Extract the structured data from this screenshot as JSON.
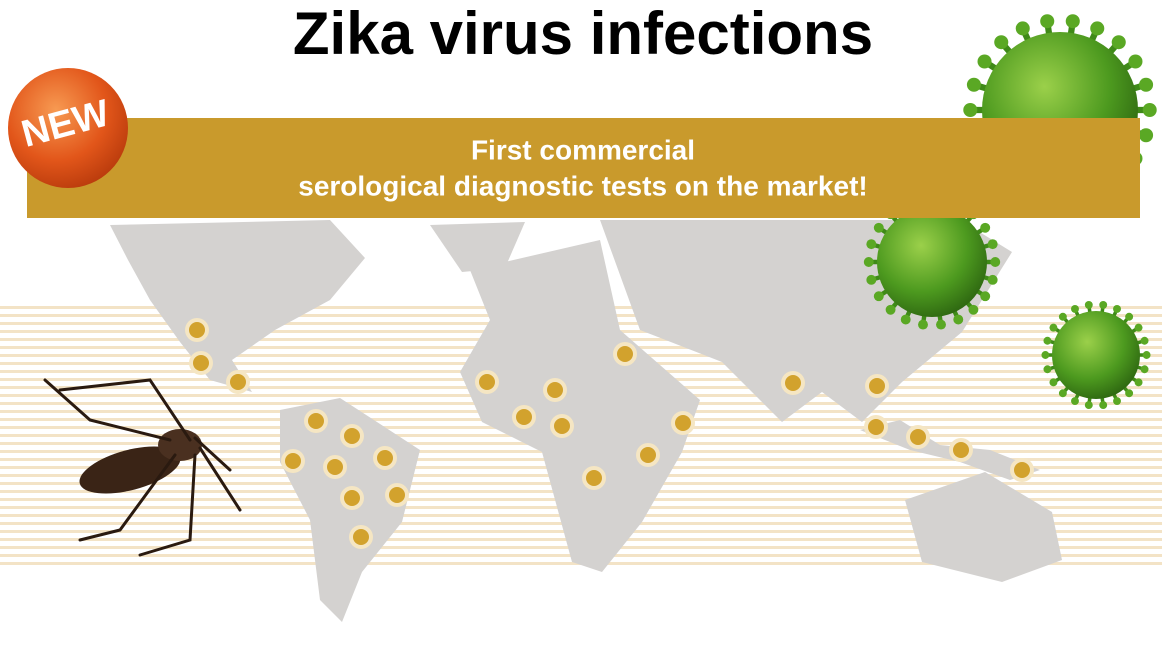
{
  "title": "Zika virus infections",
  "badge": "NEW",
  "banner": {
    "lines": [
      "First commercial",
      "serological diagnostic tests on the market!"
    ]
  }
}
